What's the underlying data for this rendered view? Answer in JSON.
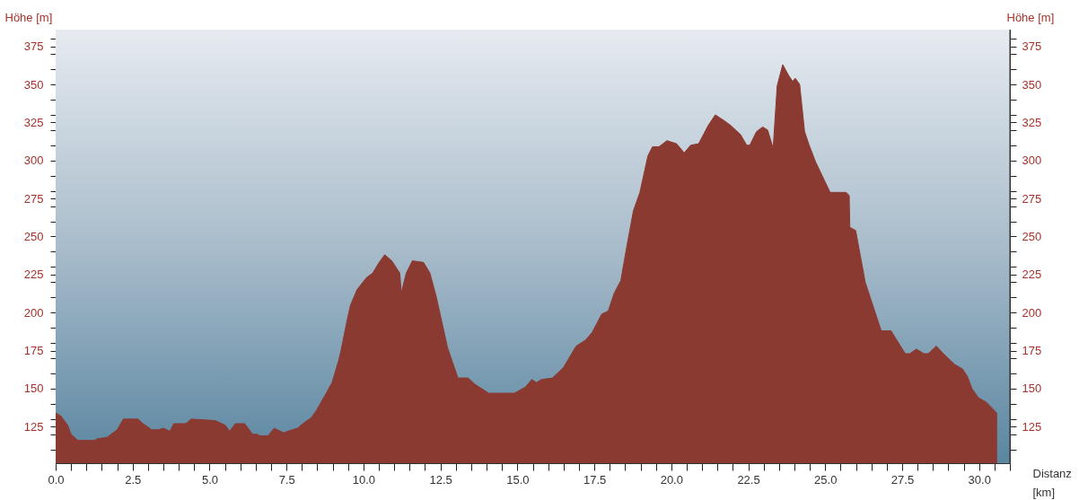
{
  "chart_data": {
    "type": "area",
    "color": "#8b3a32",
    "xlabel": "Distanz\n[km]",
    "ylabel": "Höhe [m]",
    "y2label": "Höhe [m]",
    "x": [
      0,
      0.17,
      0.39,
      0.5,
      0.72,
      1.28,
      1.33,
      1.67,
      2.0,
      2.2,
      2.67,
      2.84,
      3.12,
      3.34,
      3.5,
      3.71,
      3.84,
      4.23,
      4.4,
      5.18,
      5.51,
      5.65,
      5.84,
      6.14,
      6.4,
      6.56,
      6.62,
      6.9,
      7.1,
      7.4,
      7.69,
      7.86,
      8.03,
      8.31,
      8.48,
      8.76,
      8.98,
      9.2,
      9.27,
      9.48,
      9.58,
      9.79,
      10.1,
      10.3,
      10.51,
      10.69,
      10.92,
      11.18,
      11.23,
      11.39,
      11.59,
      11.95,
      12.16,
      12.37,
      12.73,
      13.07,
      13.4,
      13.61,
      14.07,
      14.43,
      14.9,
      15.26,
      15.47,
      15.62,
      15.78,
      16.14,
      16.5,
      16.91,
      17.22,
      17.43,
      17.74,
      17.95,
      18.15,
      18.36,
      18.56,
      18.77,
      18.98,
      19.24,
      19.39,
      19.6,
      19.86,
      20.17,
      20.42,
      20.63,
      20.89,
      21.2,
      21.43,
      21.73,
      21.93,
      22.25,
      22.45,
      22.55,
      22.77,
      22.97,
      23.13,
      23.31,
      23.44,
      23.62,
      23.81,
      23.94,
      24.03,
      24.17,
      24.33,
      24.48,
      24.69,
      25.16,
      25.68,
      25.78,
      25.8,
      25.99,
      26.3,
      26.51,
      26.82,
      27.14,
      27.6,
      27.75,
      27.96,
      28.21,
      28.35,
      28.61,
      28.84,
      29.2,
      29.46,
      29.62,
      29.77,
      29.98,
      30.24,
      30.57
    ],
    "values": [
      134,
      132,
      126,
      120,
      116,
      116,
      117,
      118,
      123,
      130,
      130,
      127,
      123,
      123,
      124,
      122,
      127,
      127,
      130,
      129,
      126,
      122,
      127,
      127,
      120,
      120,
      119,
      119,
      124,
      121,
      123,
      124,
      127,
      131,
      136,
      146,
      154,
      169,
      175,
      196,
      205,
      215,
      223,
      226,
      233,
      238,
      234,
      226,
      213,
      226,
      234,
      233,
      226,
      210,
      177,
      157,
      157,
      153,
      147,
      147,
      147,
      151,
      156,
      154,
      156,
      157,
      164,
      178,
      182,
      187,
      199,
      201,
      213,
      221,
      244,
      267,
      279,
      303,
      309,
      309,
      313,
      311,
      305,
      310,
      311,
      323,
      330,
      326,
      323,
      317,
      310,
      310,
      319,
      322,
      320,
      308,
      349,
      363,
      356,
      352,
      354,
      350,
      319,
      310,
      299,
      279,
      279,
      277,
      256,
      254,
      220,
      207,
      188,
      188,
      173,
      173,
      176,
      173,
      173,
      178,
      173,
      166,
      163,
      158,
      150,
      144,
      141,
      134
    ],
    "xlim": [
      0,
      31
    ],
    "ylim": [
      101,
      386
    ],
    "y2lim": [
      101,
      386
    ],
    "xticks": [
      {
        "value": 0,
        "label": "0.0"
      },
      {
        "value": 0.5,
        "label": null
      },
      {
        "value": 1,
        "label": null
      },
      {
        "value": 1.5,
        "label": null
      },
      {
        "value": 2,
        "label": null
      },
      2.5,
      {
        "value": 3,
        "label": null
      },
      {
        "value": 3.5,
        "label": null
      },
      {
        "value": 4,
        "label": null
      },
      {
        "value": 4.5,
        "label": null
      },
      {
        "value": 5,
        "label": "5.0"
      },
      {
        "value": 5.5,
        "label": null
      },
      {
        "value": 6,
        "label": null
      },
      {
        "value": 6.5,
        "label": null
      },
      {
        "value": 7,
        "label": null
      },
      7.5,
      {
        "value": 8,
        "label": null
      },
      {
        "value": 8.5,
        "label": null
      },
      {
        "value": 9,
        "label": null
      },
      {
        "value": 9.5,
        "label": null
      },
      {
        "value": 10,
        "label": "10.0"
      },
      {
        "value": 10.5,
        "label": null
      },
      {
        "value": 11,
        "label": null
      },
      {
        "value": 11.5,
        "label": null
      },
      {
        "value": 12,
        "label": null
      },
      12.5,
      {
        "value": 13,
        "label": null
      },
      {
        "value": 13.5,
        "label": null
      },
      {
        "value": 14,
        "label": null
      },
      {
        "value": 14.5,
        "label": null
      },
      {
        "value": 15,
        "label": "15.0"
      },
      {
        "value": 15.5,
        "label": null
      },
      {
        "value": 16,
        "label": null
      },
      {
        "value": 16.5,
        "label": null
      },
      {
        "value": 17,
        "label": null
      },
      17.5,
      {
        "value": 18,
        "label": null
      },
      {
        "value": 18.5,
        "label": null
      },
      {
        "value": 19,
        "label": null
      },
      {
        "value": 19.5,
        "label": null
      },
      {
        "value": 20,
        "label": "20.0"
      },
      {
        "value": 20.5,
        "label": null
      },
      {
        "value": 21,
        "label": null
      },
      {
        "value": 21.5,
        "label": null
      },
      {
        "value": 22,
        "label": null
      },
      22.5,
      {
        "value": 23,
        "label": null
      },
      {
        "value": 23.5,
        "label": null
      },
      {
        "value": 24,
        "label": null
      },
      {
        "value": 24.5,
        "label": null
      },
      {
        "value": 25,
        "label": "25.0"
      },
      {
        "value": 25.5,
        "label": null
      },
      {
        "value": 26,
        "label": null
      },
      {
        "value": 26.5,
        "label": null
      },
      {
        "value": 27,
        "label": null
      },
      27.5,
      {
        "value": 28,
        "label": null
      },
      {
        "value": 28.5,
        "label": null
      },
      {
        "value": 29,
        "label": null
      },
      {
        "value": 29.5,
        "label": null
      },
      {
        "value": 30,
        "label": "30.0"
      },
      {
        "value": 30.5,
        "label": null
      },
      {
        "value": 31,
        "label": null
      }
    ],
    "yticks": [
      {
        "value": 110,
        "label": null
      },
      {
        "value": 120,
        "label": null
      },
      125,
      {
        "value": 130,
        "label": null
      },
      {
        "value": 140,
        "label": null
      },
      150,
      {
        "value": 160,
        "label": null
      },
      {
        "value": 170,
        "label": null
      },
      175,
      {
        "value": 180,
        "label": null
      },
      {
        "value": 190,
        "label": null
      },
      200,
      {
        "value": 210,
        "label": null
      },
      {
        "value": 220,
        "label": null
      },
      225,
      {
        "value": 230,
        "label": null
      },
      {
        "value": 240,
        "label": null
      },
      250,
      {
        "value": 260,
        "label": null
      },
      {
        "value": 270,
        "label": null
      },
      275,
      {
        "value": 280,
        "label": null
      },
      {
        "value": 290,
        "label": null
      },
      300,
      {
        "value": 310,
        "label": null
      },
      {
        "value": 320,
        "label": null
      },
      325,
      {
        "value": 330,
        "label": null
      },
      {
        "value": 340,
        "label": null
      },
      350,
      {
        "value": 360,
        "label": null
      },
      {
        "value": 370,
        "label": null
      },
      375,
      {
        "value": 380,
        "label": null
      }
    ],
    "y2ticks": [
      {
        "value": 110,
        "label": null
      },
      {
        "value": 120,
        "label": null
      },
      125,
      {
        "value": 130,
        "label": null
      },
      {
        "value": 140,
        "label": null
      },
      150,
      {
        "value": 160,
        "label": null
      },
      {
        "value": 170,
        "label": null
      },
      175,
      {
        "value": 180,
        "label": null
      },
      {
        "value": 190,
        "label": null
      },
      200,
      {
        "value": 210,
        "label": null
      },
      {
        "value": 220,
        "label": null
      },
      225,
      {
        "value": 230,
        "label": null
      },
      {
        "value": 240,
        "label": null
      },
      250,
      {
        "value": 260,
        "label": null
      },
      {
        "value": 270,
        "label": null
      },
      275,
      {
        "value": 280,
        "label": null
      },
      {
        "value": 290,
        "label": null
      },
      300,
      {
        "value": 310,
        "label": null
      },
      {
        "value": 320,
        "label": null
      },
      325,
      {
        "value": 330,
        "label": null
      },
      {
        "value": 340,
        "label": null
      },
      350,
      {
        "value": 360,
        "label": null
      },
      {
        "value": 370,
        "label": null
      },
      375,
      {
        "value": 380,
        "label": null
      }
    ]
  }
}
